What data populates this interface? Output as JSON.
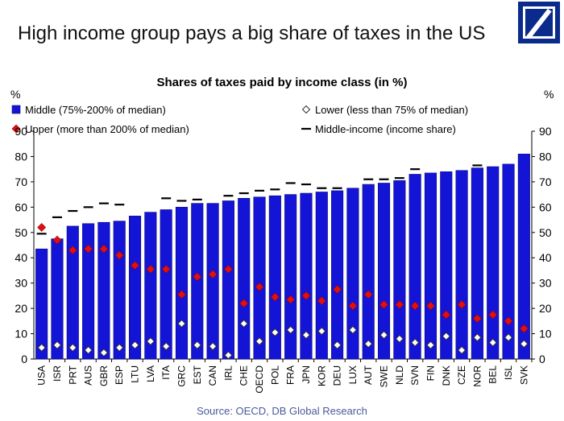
{
  "header": {
    "title": "High income group pays a big share of taxes in the US",
    "logo_color": "#0a2a8c"
  },
  "footer": {
    "source": "Source: OECD, DB Global Research"
  },
  "colors": {
    "middle": "#1414d6",
    "upper": "#e01010",
    "lower": "#ffffff",
    "income": "#000000"
  },
  "chart_data": {
    "type": "bar",
    "title": "Shares of taxes paid by income class (in %)",
    "ylabel_left": "%",
    "ylabel_right": "%",
    "ylim": [
      0,
      90
    ],
    "yticks": [
      0,
      10,
      20,
      30,
      40,
      50,
      60,
      70,
      80,
      90
    ],
    "grid": false,
    "legend_position": "top",
    "categories": [
      "USA",
      "ISR",
      "PRT",
      "AUS",
      "GBR",
      "ESP",
      "LTU",
      "LVA",
      "ITA",
      "GRC",
      "EST",
      "CAN",
      "IRL",
      "CHE",
      "OECD",
      "POL",
      "FRA",
      "JPN",
      "KOR",
      "DEU",
      "LUX",
      "AUT",
      "SWE",
      "NLD",
      "SVN",
      "FIN",
      "DNK",
      "CZE",
      "NOR",
      "BEL",
      "ISL",
      "SVK"
    ],
    "series": [
      {
        "name": "Middle (75%-200% of median)",
        "kind": "bar",
        "values": [
          43.5,
          47.5,
          52.5,
          53.5,
          54,
          54.5,
          56.5,
          58,
          59,
          60,
          61.5,
          61.5,
          62.5,
          63.5,
          64,
          64.5,
          65,
          65.5,
          66,
          66.5,
          67.5,
          69,
          69.5,
          70.5,
          73,
          73.5,
          74,
          74.5,
          75.5,
          76,
          77,
          81
        ]
      },
      {
        "name": "Lower (less than 75% of median)",
        "kind": "diamond",
        "values": [
          4.5,
          5.5,
          4.5,
          3.5,
          2.5,
          4.5,
          5.5,
          7,
          5,
          14,
          5.5,
          5,
          1.5,
          14,
          7,
          10.5,
          11.5,
          9.5,
          11,
          5.5,
          11.5,
          6,
          9.5,
          8,
          6.5,
          5.5,
          9,
          3.5,
          8.5,
          6.5,
          8.5,
          6
        ]
      },
      {
        "name": "Upper (more than 200% of median)",
        "kind": "diamond",
        "values": [
          52,
          47,
          43,
          43.5,
          43.5,
          41,
          37,
          35.5,
          35.5,
          25.5,
          32.5,
          33.5,
          35.5,
          22,
          28.5,
          24.5,
          23.5,
          25,
          23,
          27.5,
          21,
          25.5,
          21.5,
          21.5,
          21,
          21,
          17.5,
          21.5,
          16,
          17.5,
          15,
          12
        ]
      },
      {
        "name": "Middle-income (income share)",
        "kind": "dash",
        "values": [
          49.5,
          56,
          58.5,
          60,
          61.5,
          61,
          null,
          null,
          63.5,
          62.5,
          63,
          null,
          64.5,
          65.5,
          66.5,
          67,
          69.5,
          69,
          67.5,
          67.5,
          null,
          71,
          71,
          71.5,
          75,
          null,
          null,
          null,
          76.5,
          null,
          null,
          null
        ]
      }
    ]
  }
}
